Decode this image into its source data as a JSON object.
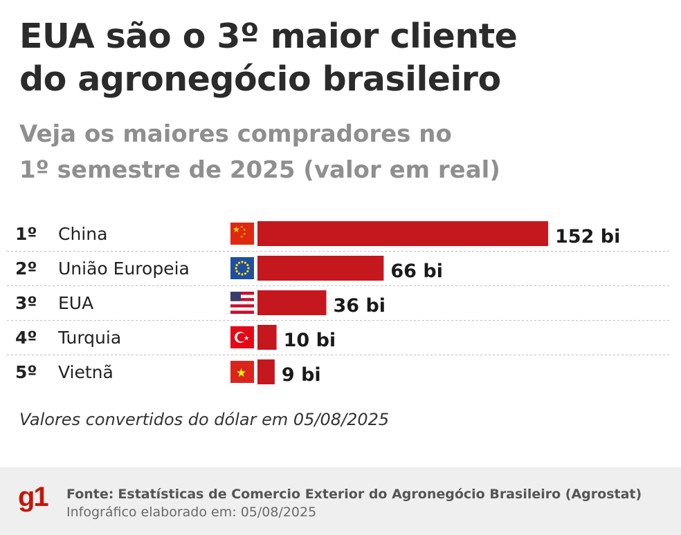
{
  "title_line1": "EUA são o 3º maior cliente",
  "title_line2": "do agronegócio brasileiro",
  "subtitle_line1": "Veja os maiores compradores no",
  "subtitle_line2": "1º semestre de 2025 (valor em real)",
  "note": "Valores convertidos do dólar em 05/08/2025",
  "footer": {
    "logo": "g1",
    "source_label": "Fonte:",
    "source_text": "Estatísticas de Comercio Exterior do Agronegócio Brasileiro (Agrostat)",
    "date_label": "Infográfico elaborado em:",
    "date_value": "05/08/2025"
  },
  "colors": {
    "bar": "#c4171e",
    "title": "#2b2b2b",
    "subtitle": "#8f8f8f",
    "footer_bg": "#efefef",
    "brand": "#c4170c"
  },
  "chart_data": {
    "type": "bar",
    "orientation": "horizontal",
    "categories": [
      "China",
      "União Europeia",
      "EUA",
      "Turquia",
      "Vietnã"
    ],
    "ranks": [
      "1º",
      "2º",
      "3º",
      "4º",
      "5º"
    ],
    "values": [
      152,
      66,
      36,
      10,
      9
    ],
    "value_labels": [
      "152 bi",
      "66 bi",
      "36 bi",
      "10 bi",
      "9 bi"
    ],
    "flags": [
      "china-flag",
      "eu-flag",
      "usa-flag",
      "turkey-flag",
      "vietnam-flag"
    ]
  }
}
